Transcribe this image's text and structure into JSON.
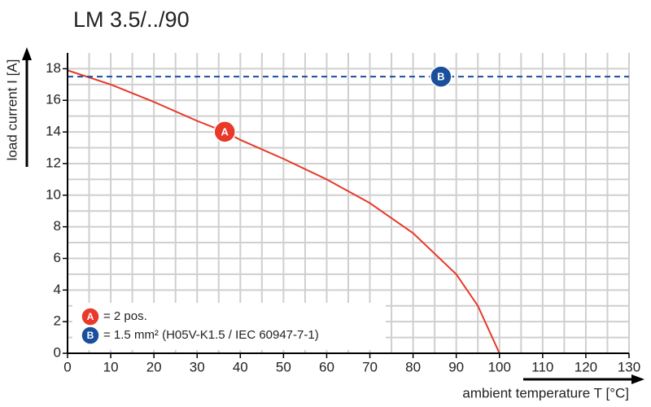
{
  "chart_data": {
    "type": "line",
    "title": "LM 3.5/../90",
    "x_label": "ambient temperature T [°C]",
    "y_label": "load current I [A]",
    "xlim": [
      0,
      130
    ],
    "ylim": [
      0,
      19
    ],
    "xticks": [
      0,
      10,
      20,
      30,
      40,
      50,
      60,
      70,
      80,
      90,
      100,
      110,
      120,
      130
    ],
    "yticks": [
      0,
      2,
      4,
      6,
      8,
      10,
      12,
      14,
      16,
      18
    ],
    "grid": true,
    "legend": "lower left",
    "series": [
      {
        "name": "A",
        "legend": "= 2 pos.",
        "color": "#e8392a",
        "dash": false,
        "x": [
          0,
          10,
          20,
          30,
          36.5,
          40,
          50,
          60,
          70,
          80,
          90,
          95,
          100
        ],
        "values": [
          17.9,
          17.0,
          15.9,
          14.7,
          14.0,
          13.5,
          12.3,
          11.0,
          9.5,
          7.6,
          5.0,
          3.0,
          0
        ]
      },
      {
        "name": "B",
        "legend": "= 1.5 mm² (H05V-K1.5 / IEC 60947-7-1)",
        "color": "#1a4f9c",
        "dash": true,
        "x": [
          0,
          130
        ],
        "values": [
          17.5,
          17.5
        ]
      }
    ]
  }
}
